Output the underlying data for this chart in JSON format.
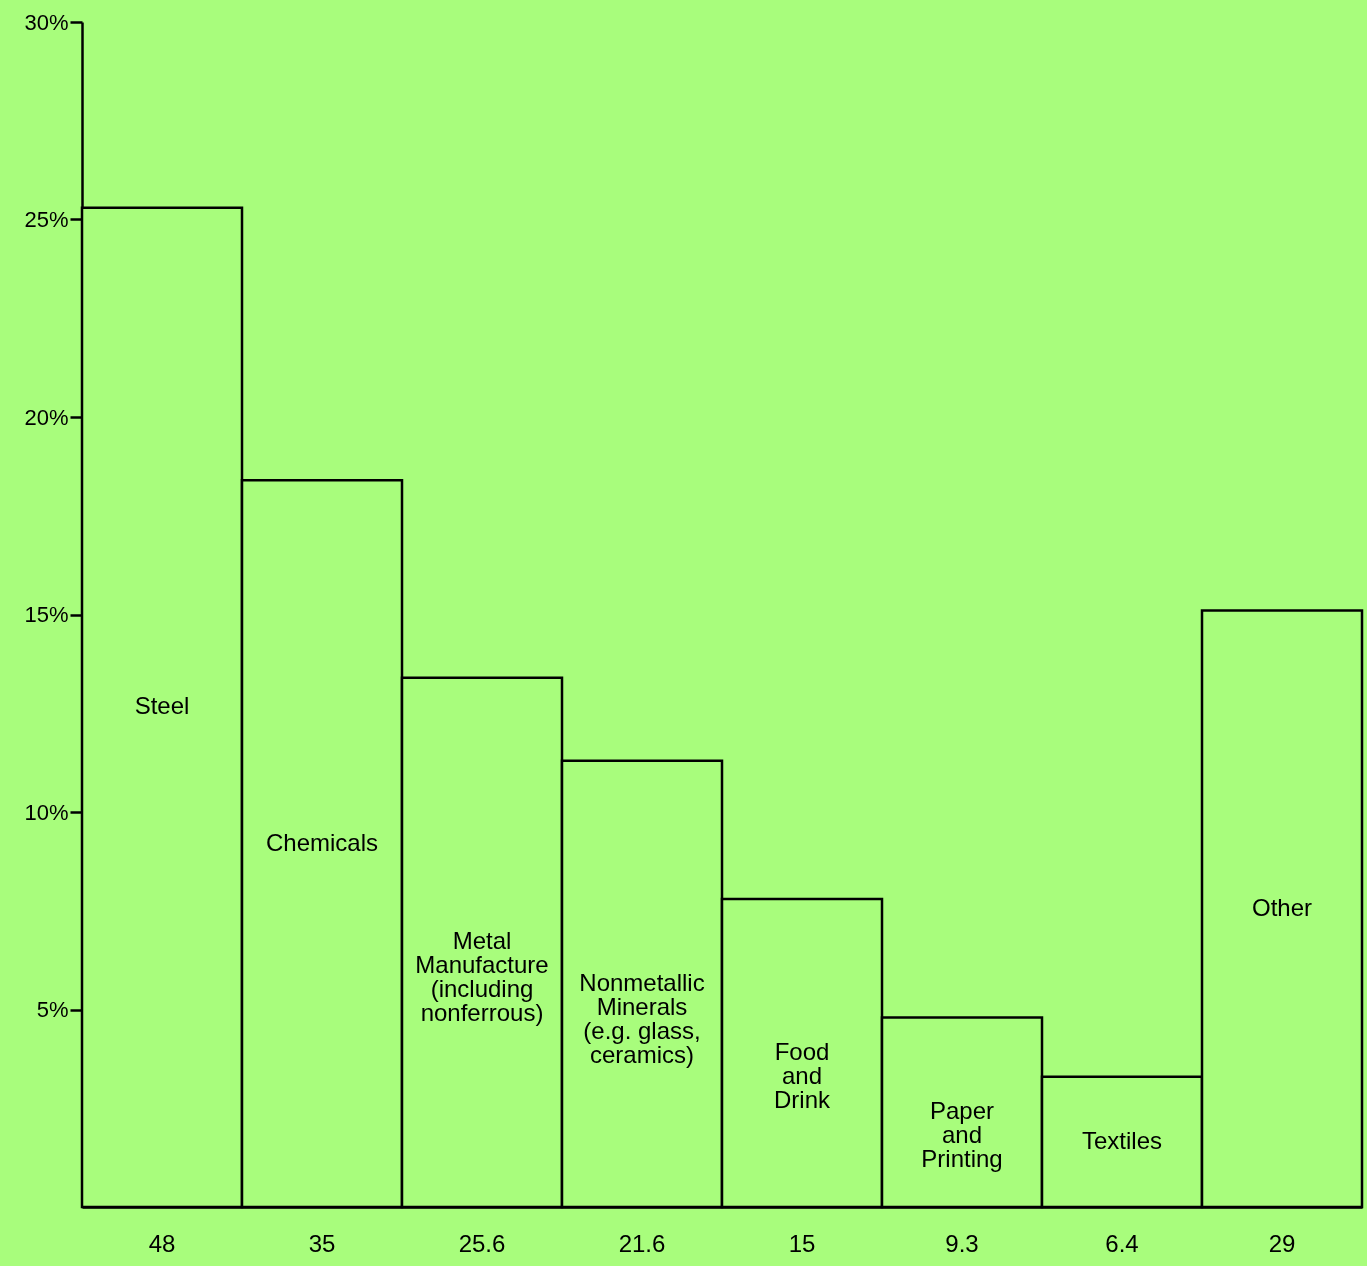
{
  "chart_data": {
    "type": "bar",
    "categories": [
      "Steel",
      "Chemicals",
      "Metal\nManufacture\n(including\nnonferrous)",
      "Nonmetallic\nMinerals\n(e.g. glass,\nceramics)",
      "Food\nand\nDrink",
      "Paper\nand\nPrinting",
      "Textiles",
      "Other"
    ],
    "values": [
      25.3,
      18.4,
      13.4,
      11.3,
      7.8,
      4.8,
      3.3,
      15.1
    ],
    "color": "#a8fd7c",
    "ylim": [
      0,
      30
    ],
    "yticks": [
      {
        "value": 5,
        "label": "5%"
      },
      {
        "value": 10,
        "label": "10%"
      },
      {
        "value": 15,
        "label": "15%"
      },
      {
        "value": 20,
        "label": "20%"
      },
      {
        "value": 25,
        "label": "25%"
      },
      {
        "value": 30,
        "label": "30%"
      }
    ],
    "annotations": [
      "48",
      "35",
      "25.6",
      "21.6",
      "15",
      "9.3",
      "6.4",
      "29"
    ]
  }
}
